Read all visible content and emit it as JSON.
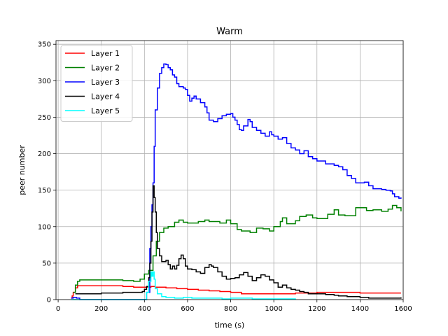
{
  "chart_data": {
    "type": "line",
    "title": "Warm",
    "xlabel": "time (s)",
    "ylabel": "peer number",
    "xlim": [
      -10,
      1600
    ],
    "ylim": [
      0,
      355
    ],
    "xticks": [
      0,
      200,
      400,
      600,
      800,
      1000,
      1200,
      1400,
      1600
    ],
    "yticks": [
      0,
      50,
      100,
      150,
      200,
      250,
      300,
      350
    ],
    "grid": true,
    "legend_position": "top-left",
    "series": [
      {
        "name": "Layer 1",
        "color": "#ff0000",
        "points": [
          [
            60,
            2
          ],
          [
            65,
            5
          ],
          [
            70,
            10
          ],
          [
            80,
            16
          ],
          [
            90,
            19
          ],
          [
            200,
            19
          ],
          [
            300,
            18
          ],
          [
            350,
            17
          ],
          [
            400,
            17
          ],
          [
            430,
            18
          ],
          [
            450,
            17
          ],
          [
            500,
            16
          ],
          [
            550,
            15
          ],
          [
            600,
            14
          ],
          [
            650,
            13
          ],
          [
            700,
            12
          ],
          [
            750,
            11
          ],
          [
            800,
            10
          ],
          [
            850,
            8
          ],
          [
            900,
            8
          ],
          [
            1000,
            8
          ],
          [
            1100,
            9
          ],
          [
            1200,
            10
          ],
          [
            1300,
            10
          ],
          [
            1380,
            10
          ],
          [
            1400,
            9
          ],
          [
            1590,
            9
          ]
        ]
      },
      {
        "name": "Layer 2",
        "color": "#008000",
        "points": [
          [
            70,
            10
          ],
          [
            80,
            20
          ],
          [
            90,
            25
          ],
          [
            100,
            27
          ],
          [
            200,
            27
          ],
          [
            300,
            26
          ],
          [
            350,
            25
          ],
          [
            380,
            28
          ],
          [
            400,
            35
          ],
          [
            420,
            40
          ],
          [
            440,
            60
          ],
          [
            455,
            80
          ],
          [
            470,
            92
          ],
          [
            490,
            98
          ],
          [
            510,
            100
          ],
          [
            540,
            106
          ],
          [
            560,
            109
          ],
          [
            580,
            106
          ],
          [
            600,
            105
          ],
          [
            650,
            107
          ],
          [
            680,
            109
          ],
          [
            700,
            107
          ],
          [
            750,
            105
          ],
          [
            780,
            109
          ],
          [
            800,
            104
          ],
          [
            830,
            96
          ],
          [
            850,
            94
          ],
          [
            890,
            92
          ],
          [
            920,
            98
          ],
          [
            950,
            97
          ],
          [
            980,
            94
          ],
          [
            1000,
            100
          ],
          [
            1030,
            107
          ],
          [
            1040,
            112
          ],
          [
            1060,
            104
          ],
          [
            1100,
            108
          ],
          [
            1120,
            114
          ],
          [
            1150,
            116
          ],
          [
            1180,
            112
          ],
          [
            1200,
            111
          ],
          [
            1250,
            117
          ],
          [
            1280,
            123
          ],
          [
            1300,
            116
          ],
          [
            1330,
            115
          ],
          [
            1380,
            126
          ],
          [
            1400,
            126
          ],
          [
            1430,
            122
          ],
          [
            1460,
            123
          ],
          [
            1500,
            121
          ],
          [
            1530,
            124
          ],
          [
            1550,
            129
          ],
          [
            1570,
            126
          ],
          [
            1590,
            121
          ]
        ]
      },
      {
        "name": "Layer 3",
        "color": "#0000ff",
        "points": [
          [
            60,
            2
          ],
          [
            70,
            3
          ],
          [
            85,
            2
          ],
          [
            100,
            0
          ],
          [
            400,
            0
          ],
          [
            410,
            10
          ],
          [
            425,
            70
          ],
          [
            430,
            100
          ],
          [
            435,
            130
          ],
          [
            440,
            160
          ],
          [
            445,
            210
          ],
          [
            450,
            260
          ],
          [
            460,
            290
          ],
          [
            470,
            310
          ],
          [
            480,
            318
          ],
          [
            490,
            323
          ],
          [
            500,
            322
          ],
          [
            510,
            318
          ],
          [
            520,
            315
          ],
          [
            530,
            308
          ],
          [
            540,
            305
          ],
          [
            550,
            296
          ],
          [
            560,
            292
          ],
          [
            580,
            290
          ],
          [
            590,
            288
          ],
          [
            600,
            280
          ],
          [
            610,
            272
          ],
          [
            620,
            276
          ],
          [
            630,
            279
          ],
          [
            640,
            275
          ],
          [
            660,
            270
          ],
          [
            680,
            264
          ],
          [
            690,
            256
          ],
          [
            700,
            246
          ],
          [
            720,
            244
          ],
          [
            740,
            248
          ],
          [
            760,
            252
          ],
          [
            780,
            254
          ],
          [
            800,
            255
          ],
          [
            810,
            250
          ],
          [
            820,
            246
          ],
          [
            830,
            240
          ],
          [
            840,
            233
          ],
          [
            850,
            232
          ],
          [
            860,
            238
          ],
          [
            880,
            247
          ],
          [
            890,
            244
          ],
          [
            900,
            236
          ],
          [
            920,
            232
          ],
          [
            940,
            228
          ],
          [
            960,
            224
          ],
          [
            980,
            230
          ],
          [
            990,
            226
          ],
          [
            1000,
            224
          ],
          [
            1020,
            220
          ],
          [
            1040,
            222
          ],
          [
            1060,
            214
          ],
          [
            1080,
            208
          ],
          [
            1100,
            205
          ],
          [
            1120,
            200
          ],
          [
            1140,
            204
          ],
          [
            1160,
            196
          ],
          [
            1180,
            193
          ],
          [
            1200,
            190
          ],
          [
            1240,
            186
          ],
          [
            1280,
            184
          ],
          [
            1300,
            182
          ],
          [
            1320,
            178
          ],
          [
            1340,
            170
          ],
          [
            1360,
            166
          ],
          [
            1380,
            160
          ],
          [
            1420,
            161
          ],
          [
            1440,
            156
          ],
          [
            1460,
            152
          ],
          [
            1500,
            151
          ],
          [
            1520,
            150
          ],
          [
            1540,
            149
          ],
          [
            1550,
            145
          ],
          [
            1560,
            141
          ],
          [
            1580,
            139
          ],
          [
            1590,
            140
          ]
        ]
      },
      {
        "name": "Layer 4",
        "color": "#000000",
        "points": [
          [
            80,
            8
          ],
          [
            100,
            8
          ],
          [
            200,
            9
          ],
          [
            300,
            10
          ],
          [
            390,
            11
          ],
          [
            400,
            14
          ],
          [
            410,
            18
          ],
          [
            420,
            30
          ],
          [
            425,
            50
          ],
          [
            430,
            80
          ],
          [
            435,
            120
          ],
          [
            440,
            156
          ],
          [
            445,
            140
          ],
          [
            450,
            120
          ],
          [
            455,
            92
          ],
          [
            460,
            70
          ],
          [
            470,
            60
          ],
          [
            480,
            52
          ],
          [
            500,
            54
          ],
          [
            510,
            48
          ],
          [
            520,
            42
          ],
          [
            530,
            46
          ],
          [
            540,
            42
          ],
          [
            550,
            47
          ],
          [
            560,
            56
          ],
          [
            570,
            61
          ],
          [
            580,
            56
          ],
          [
            590,
            46
          ],
          [
            600,
            42
          ],
          [
            620,
            41
          ],
          [
            640,
            38
          ],
          [
            660,
            36
          ],
          [
            680,
            44
          ],
          [
            700,
            48
          ],
          [
            710,
            46
          ],
          [
            720,
            44
          ],
          [
            740,
            38
          ],
          [
            760,
            32
          ],
          [
            780,
            28
          ],
          [
            800,
            29
          ],
          [
            820,
            30
          ],
          [
            840,
            34
          ],
          [
            860,
            37
          ],
          [
            880,
            32
          ],
          [
            900,
            26
          ],
          [
            920,
            30
          ],
          [
            940,
            34
          ],
          [
            960,
            32
          ],
          [
            980,
            27
          ],
          [
            1000,
            23
          ],
          [
            1020,
            17
          ],
          [
            1040,
            20
          ],
          [
            1060,
            16
          ],
          [
            1080,
            14
          ],
          [
            1100,
            13
          ],
          [
            1120,
            11
          ],
          [
            1140,
            10
          ],
          [
            1160,
            8
          ],
          [
            1200,
            8
          ],
          [
            1240,
            7
          ],
          [
            1280,
            6
          ],
          [
            1300,
            5
          ],
          [
            1340,
            4
          ],
          [
            1400,
            3
          ],
          [
            1440,
            2
          ],
          [
            1500,
            2
          ],
          [
            1560,
            2
          ],
          [
            1590,
            3
          ]
        ]
      },
      {
        "name": "Layer 5",
        "color": "#00ffff",
        "points": [
          [
            60,
            0
          ],
          [
            400,
            0
          ],
          [
            410,
            10
          ],
          [
            420,
            25
          ],
          [
            430,
            38
          ],
          [
            435,
            32
          ],
          [
            440,
            38
          ],
          [
            445,
            28
          ],
          [
            450,
            15
          ],
          [
            460,
            8
          ],
          [
            480,
            4
          ],
          [
            500,
            3
          ],
          [
            540,
            2
          ],
          [
            580,
            3
          ],
          [
            620,
            2
          ],
          [
            700,
            2
          ],
          [
            760,
            1
          ],
          [
            800,
            2
          ],
          [
            900,
            1
          ],
          [
            1000,
            1
          ],
          [
            1100,
            0
          ]
        ]
      }
    ]
  }
}
